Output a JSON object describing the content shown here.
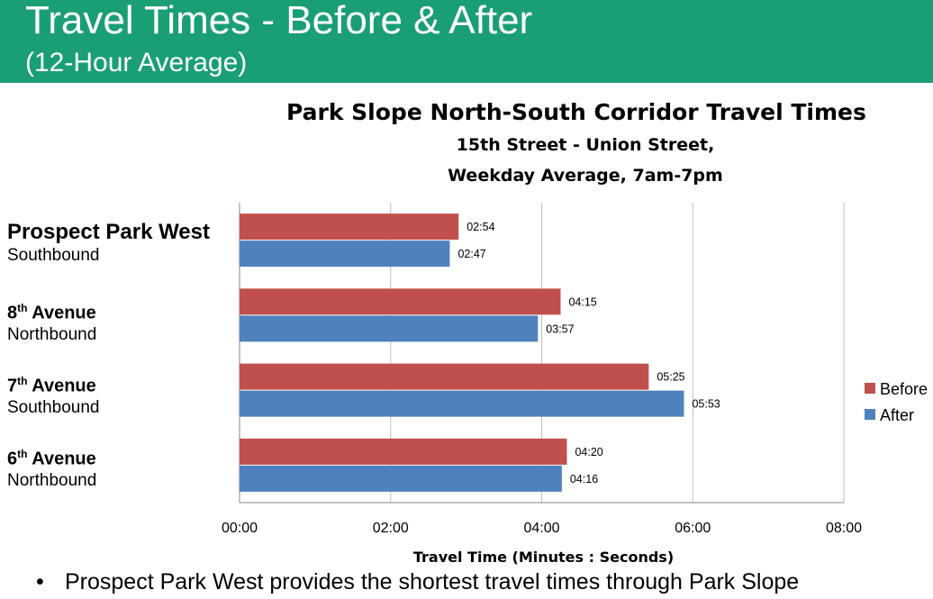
{
  "header": {
    "title": "Travel Times - Before & After",
    "subtitle": "(12-Hour Average)"
  },
  "bullet": {
    "symbol": "•",
    "text": "Prospect Park West provides the shortest travel times through Park Slope"
  },
  "colors": {
    "header_bg": "#1a9e76",
    "before": "#c0504d",
    "after": "#4f81bd",
    "grid": "#bfbfbf"
  },
  "chart_data": {
    "type": "bar",
    "orientation": "horizontal",
    "title": "Park Slope North-South Corridor Travel Times",
    "subtitle_lines": [
      "15th Street - Union Street,",
      "Weekday Average, 7am-7pm"
    ],
    "xlabel": "Travel Time (Minutes : Seconds)",
    "x_unit": "seconds",
    "xlim": [
      0,
      480
    ],
    "x_ticks": [
      0,
      120,
      240,
      360,
      480
    ],
    "x_tick_labels": [
      "00:00",
      "02:00",
      "04:00",
      "06:00",
      "08:00"
    ],
    "grid": true,
    "legend_position": "right",
    "categories": [
      {
        "name": "Prospect Park West",
        "sup": "",
        "name_rest": "",
        "direction": "Southbound",
        "emphasis": true
      },
      {
        "name": "8",
        "sup": "th",
        "name_rest": " Avenue",
        "direction": "Northbound",
        "emphasis": false
      },
      {
        "name": "7",
        "sup": "th",
        "name_rest": " Avenue",
        "direction": "Southbound",
        "emphasis": false
      },
      {
        "name": "6",
        "sup": "th",
        "name_rest": " Avenue",
        "direction": "Northbound",
        "emphasis": false
      }
    ],
    "series": [
      {
        "name": "Before",
        "color": "#c0504d",
        "values": [
          174,
          255,
          325,
          260
        ],
        "labels": [
          "02:54",
          "04:15",
          "05:25",
          "04:20"
        ]
      },
      {
        "name": "After",
        "color": "#4f81bd",
        "values": [
          167,
          237,
          353,
          256
        ],
        "labels": [
          "02:47",
          "03:57",
          "05:53",
          "04:16"
        ]
      }
    ]
  }
}
